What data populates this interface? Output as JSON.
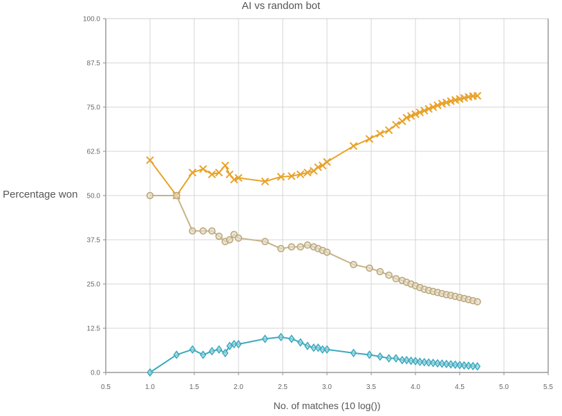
{
  "chart_data": {
    "type": "line",
    "title": "AI vs random bot",
    "xlabel": "No. of matches (10 log())",
    "ylabel": "Percentage won",
    "xlim": [
      0.5,
      5.5
    ],
    "ylim": [
      0,
      100
    ],
    "x_ticks": [
      "0.5",
      "1.0",
      "1.5",
      "2.0",
      "2.5",
      "3.0",
      "3.5",
      "4.0",
      "4.5",
      "5.0",
      "5.5"
    ],
    "y_ticks": [
      "0.0",
      "12.5",
      "25.0",
      "37.5",
      "50.0",
      "62.5",
      "75.0",
      "87.5",
      "100.0"
    ],
    "grid": true,
    "series": [
      {
        "color": "#e8a22a",
        "marker": "x",
        "points": [
          [
            1.0,
            60.0
          ],
          [
            1.3,
            50.0
          ],
          [
            1.48,
            56.5
          ],
          [
            1.6,
            57.5
          ],
          [
            1.7,
            56.0
          ],
          [
            1.78,
            56.5
          ],
          [
            1.85,
            58.5
          ],
          [
            1.9,
            56.0
          ],
          [
            1.95,
            54.5
          ],
          [
            2.0,
            55.0
          ],
          [
            2.3,
            54.0
          ],
          [
            2.48,
            55.3
          ],
          [
            2.6,
            55.5
          ],
          [
            2.7,
            56.0
          ],
          [
            2.78,
            56.5
          ],
          [
            2.85,
            57.0
          ],
          [
            2.9,
            58.0
          ],
          [
            2.95,
            58.5
          ],
          [
            3.0,
            59.5
          ],
          [
            3.3,
            64.0
          ],
          [
            3.48,
            66.0
          ],
          [
            3.6,
            67.5
          ],
          [
            3.7,
            68.5
          ],
          [
            3.78,
            70.0
          ],
          [
            3.85,
            71.0
          ],
          [
            3.9,
            72.0
          ],
          [
            3.95,
            72.5
          ],
          [
            4.0,
            73.0
          ],
          [
            4.05,
            73.5
          ],
          [
            4.1,
            74.0
          ],
          [
            4.15,
            74.5
          ],
          [
            4.2,
            75.0
          ],
          [
            4.25,
            75.5
          ],
          [
            4.3,
            76.0
          ],
          [
            4.35,
            76.3
          ],
          [
            4.4,
            76.7
          ],
          [
            4.45,
            77.0
          ],
          [
            4.5,
            77.3
          ],
          [
            4.55,
            77.6
          ],
          [
            4.6,
            77.9
          ],
          [
            4.65,
            78.1
          ],
          [
            4.7,
            78.2
          ]
        ]
      },
      {
        "color": "#c4b28a",
        "marker": "circle",
        "points": [
          [
            1.0,
            50.0
          ],
          [
            1.3,
            50.0
          ],
          [
            1.48,
            40.0
          ],
          [
            1.6,
            40.0
          ],
          [
            1.7,
            40.0
          ],
          [
            1.78,
            38.5
          ],
          [
            1.85,
            37.0
          ],
          [
            1.9,
            37.5
          ],
          [
            1.95,
            39.0
          ],
          [
            2.0,
            38.0
          ],
          [
            2.3,
            37.0
          ],
          [
            2.48,
            35.0
          ],
          [
            2.6,
            35.5
          ],
          [
            2.7,
            35.5
          ],
          [
            2.78,
            36.0
          ],
          [
            2.85,
            35.5
          ],
          [
            2.9,
            35.0
          ],
          [
            2.95,
            34.5
          ],
          [
            3.0,
            34.0
          ],
          [
            3.3,
            30.5
          ],
          [
            3.48,
            29.5
          ],
          [
            3.6,
            28.5
          ],
          [
            3.7,
            27.5
          ],
          [
            3.78,
            26.5
          ],
          [
            3.85,
            26.0
          ],
          [
            3.9,
            25.5
          ],
          [
            3.95,
            25.0
          ],
          [
            4.0,
            24.5
          ],
          [
            4.05,
            24.0
          ],
          [
            4.1,
            23.5
          ],
          [
            4.15,
            23.2
          ],
          [
            4.2,
            22.9
          ],
          [
            4.25,
            22.6
          ],
          [
            4.3,
            22.3
          ],
          [
            4.35,
            22.0
          ],
          [
            4.4,
            21.8
          ],
          [
            4.45,
            21.5
          ],
          [
            4.5,
            21.2
          ],
          [
            4.55,
            20.9
          ],
          [
            4.6,
            20.6
          ],
          [
            4.65,
            20.3
          ],
          [
            4.7,
            20.0
          ]
        ]
      },
      {
        "color": "#3aa8bd",
        "marker": "diamond",
        "points": [
          [
            1.0,
            0.0
          ],
          [
            1.3,
            5.0
          ],
          [
            1.48,
            6.5
          ],
          [
            1.6,
            5.0
          ],
          [
            1.7,
            6.0
          ],
          [
            1.78,
            6.5
          ],
          [
            1.85,
            5.5
          ],
          [
            1.9,
            7.5
          ],
          [
            1.95,
            8.0
          ],
          [
            2.0,
            8.0
          ],
          [
            2.3,
            9.5
          ],
          [
            2.48,
            10.0
          ],
          [
            2.6,
            9.5
          ],
          [
            2.7,
            8.5
          ],
          [
            2.78,
            7.5
          ],
          [
            2.85,
            7.0
          ],
          [
            2.9,
            7.0
          ],
          [
            2.95,
            6.5
          ],
          [
            3.0,
            6.5
          ],
          [
            3.3,
            5.5
          ],
          [
            3.48,
            5.0
          ],
          [
            3.6,
            4.5
          ],
          [
            3.7,
            4.0
          ],
          [
            3.78,
            4.0
          ],
          [
            3.85,
            3.5
          ],
          [
            3.9,
            3.5
          ],
          [
            3.95,
            3.3
          ],
          [
            4.0,
            3.2
          ],
          [
            4.05,
            3.0
          ],
          [
            4.1,
            2.9
          ],
          [
            4.15,
            2.8
          ],
          [
            4.2,
            2.7
          ],
          [
            4.25,
            2.6
          ],
          [
            4.3,
            2.5
          ],
          [
            4.35,
            2.4
          ],
          [
            4.4,
            2.3
          ],
          [
            4.45,
            2.2
          ],
          [
            4.5,
            2.1
          ],
          [
            4.55,
            2.0
          ],
          [
            4.6,
            1.9
          ],
          [
            4.65,
            1.8
          ],
          [
            4.7,
            1.7
          ]
        ]
      }
    ]
  }
}
